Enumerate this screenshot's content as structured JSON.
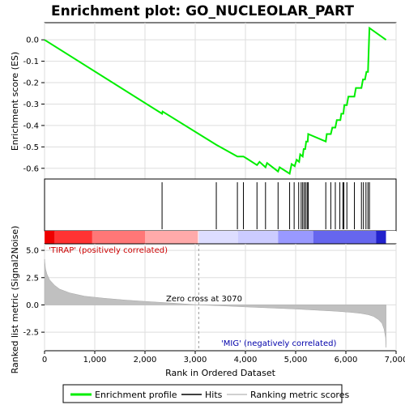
{
  "chart_data": {
    "type": "line",
    "title": "Enrichment plot: GO_NUCLEOLAR_PART",
    "xlabel": "Rank in Ordered Dataset",
    "ylabel_top": "Enrichment score (ES)",
    "ylabel_bottom": "Ranked list metric (Signal2Noise)",
    "xlim": [
      0,
      7000
    ],
    "x_ticks": [
      "0",
      "1,000",
      "2,000",
      "3,000",
      "4,000",
      "5,000",
      "6,000",
      "7,000"
    ],
    "x_tick_values": [
      0,
      1000,
      2000,
      3000,
      4000,
      5000,
      6000,
      7000
    ],
    "es_ylim": [
      -0.65,
      0.08
    ],
    "es_ticks": [
      "0.0",
      "-0.1",
      "-0.2",
      "-0.3",
      "-0.4",
      "-0.5",
      "-0.6"
    ],
    "es_tick_values": [
      0.0,
      -0.1,
      -0.2,
      -0.3,
      -0.4,
      -0.5,
      -0.6
    ],
    "metric_ylim": [
      -4.2,
      5.6
    ],
    "metric_ticks": [
      "5.0",
      "2.5",
      "0.0",
      "-2.5"
    ],
    "metric_tick_values": [
      5.0,
      2.5,
      0.0,
      -2.5
    ],
    "n_genes": 6800,
    "enrichment_profile": {
      "name": "Enrichment profile",
      "color": "#00ee00",
      "x": [
        0,
        2340,
        2350,
        3420,
        3840,
        3960,
        4030,
        4230,
        4280,
        4400,
        4430,
        4650,
        4680,
        4880,
        4920,
        4980,
        5020,
        5070,
        5090,
        5140,
        5160,
        5190,
        5210,
        5240,
        5250,
        5600,
        5620,
        5700,
        5730,
        5790,
        5820,
        5890,
        5910,
        5950,
        5970,
        6020,
        6050,
        6170,
        6200,
        6310,
        6340,
        6380,
        6410,
        6440,
        6470,
        6800
      ],
      "y": [
        0.0,
        -0.345,
        -0.335,
        -0.49,
        -0.545,
        -0.545,
        -0.555,
        -0.585,
        -0.57,
        -0.595,
        -0.575,
        -0.615,
        -0.595,
        -0.625,
        -0.58,
        -0.59,
        -0.56,
        -0.57,
        -0.535,
        -0.545,
        -0.51,
        -0.51,
        -0.475,
        -0.475,
        -0.44,
        -0.475,
        -0.44,
        -0.44,
        -0.41,
        -0.41,
        -0.375,
        -0.375,
        -0.345,
        -0.345,
        -0.305,
        -0.305,
        -0.265,
        -0.265,
        -0.225,
        -0.225,
        -0.185,
        -0.185,
        -0.15,
        -0.15,
        0.055,
        0.0
      ]
    },
    "hits": {
      "name": "Hits",
      "x": [
        2340,
        3420,
        3840,
        3960,
        4230,
        4400,
        4650,
        4880,
        4970,
        5060,
        5110,
        5140,
        5170,
        5200,
        5230,
        5250,
        5600,
        5700,
        5790,
        5880,
        5940,
        5960,
        6020,
        6170,
        6310,
        6350,
        6400,
        6440,
        6470
      ]
    },
    "ranking_metric": {
      "name": "Ranking metric scores",
      "color": "#c0c0c0",
      "x": [
        0,
        20,
        50,
        100,
        200,
        300,
        500,
        800,
        1200,
        1600,
        2000,
        2500,
        3070,
        3500,
        4000,
        4500,
        5000,
        5500,
        5800,
        6100,
        6300,
        6450,
        6550,
        6650,
        6720,
        6760,
        6790,
        6800
      ],
      "y": [
        4.2,
        3.3,
        2.8,
        2.3,
        1.8,
        1.45,
        1.1,
        0.8,
        0.6,
        0.45,
        0.32,
        0.18,
        0.0,
        -0.08,
        -0.18,
        -0.28,
        -0.38,
        -0.5,
        -0.58,
        -0.68,
        -0.78,
        -0.9,
        -1.05,
        -1.35,
        -1.7,
        -2.2,
        -3.0,
        -3.9
      ]
    },
    "zero_cross": 3070,
    "annotations": {
      "positive": "'TIRAP' (positively correlated)",
      "negative": "'MIG' (negatively correlated)",
      "zero_cross": "Zero cross at 3070"
    },
    "color_band": {
      "stops": [
        {
          "x": 0,
          "color": "#ee0000"
        },
        {
          "x": 200,
          "color": "#ff3333"
        },
        {
          "x": 950,
          "color": "#ff7777"
        },
        {
          "x": 2000,
          "color": "#ffaaaa"
        },
        {
          "x": 3050,
          "color": "#ffdddd"
        },
        {
          "x": 3070,
          "color": "#ddddff"
        },
        {
          "x": 3850,
          "color": "#ccccff"
        },
        {
          "x": 4650,
          "color": "#9999ff"
        },
        {
          "x": 5350,
          "color": "#6666ee"
        },
        {
          "x": 6600,
          "color": "#2222cc"
        },
        {
          "x": 6800,
          "color": "#0000bb"
        }
      ]
    },
    "legend": [
      "Enrichment profile",
      "Hits",
      "Ranking metric scores"
    ]
  }
}
